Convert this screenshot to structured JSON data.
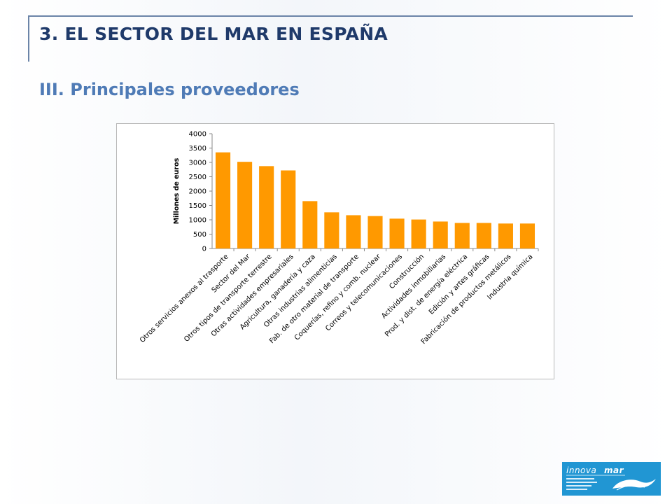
{
  "header": {
    "title": "3. EL SECTOR DEL MAR EN ESPAÑA",
    "subtitle": "III. Principales proveedores"
  },
  "logo": {
    "name": "INNOVAMAR",
    "caption_lines": [
      "Fundación Instituto Tecnológico",
      "para el desarrollo de las",
      "Industrias marítimas"
    ],
    "background": "#2196d3"
  },
  "chart_data": {
    "type": "bar",
    "ylabel": "Millones de euros",
    "xlabel": "",
    "ylim": [
      0,
      4000
    ],
    "yticks": [
      0,
      500,
      1000,
      1500,
      2000,
      2500,
      3000,
      3500,
      4000
    ],
    "grid": false,
    "bar_color": "#ff9900",
    "categories": [
      "Otros servicios anexos al trasporte",
      "Sector del Mar",
      "Otros tipos de transporte terrestre",
      "Otras actividades empresariales",
      "Agricultura, ganadería y caza",
      "Otras industrias alimenticias",
      "Fab. de otro material de transporte",
      "Coquerías, refino y comb. nuclear",
      "Correos y telecomunicaciones",
      "Construcción",
      "Actividades inmobiliarias",
      "Prod. y dist. de energía eléctrica",
      "Edición y artes gráficas",
      "Fabricación de productos metálicos",
      "Industria química"
    ],
    "values": [
      3350,
      3020,
      2870,
      2720,
      1650,
      1260,
      1160,
      1130,
      1040,
      1010,
      940,
      890,
      890,
      870,
      870
    ]
  }
}
